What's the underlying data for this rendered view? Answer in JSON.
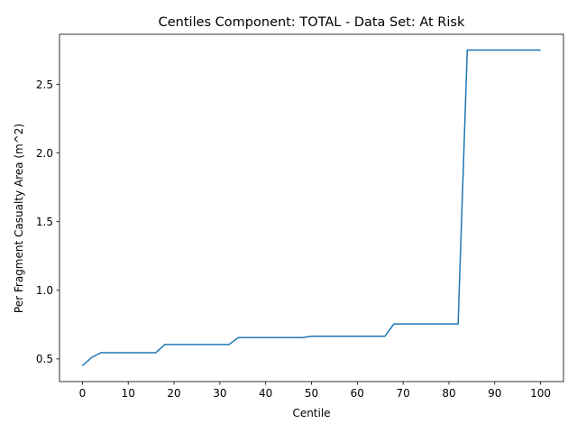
{
  "chart_data": {
    "type": "line",
    "title": "Centiles Component: TOTAL - Data Set: At Risk",
    "xlabel": "Centile",
    "ylabel": "Per Fragment Casualty Area (m^2)",
    "xlim": [
      -5,
      105
    ],
    "ylim": [
      0.335,
      2.865
    ],
    "xticks": [
      0,
      10,
      20,
      30,
      40,
      50,
      60,
      70,
      80,
      90,
      100
    ],
    "xtick_labels": [
      "0",
      "10",
      "20",
      "30",
      "40",
      "50",
      "60",
      "70",
      "80",
      "90",
      "100"
    ],
    "yticks": [
      0.5,
      1.0,
      1.5,
      2.0,
      2.5
    ],
    "ytick_labels": [
      "0.5",
      "1.0",
      "1.5",
      "2.0",
      "2.5"
    ],
    "grid": false,
    "legend": "none",
    "color": "#1f77b4",
    "series": [
      {
        "x": [
          0,
          2,
          4,
          6,
          8,
          10,
          12,
          14,
          16,
          18,
          20,
          22,
          24,
          26,
          28,
          30,
          32,
          34,
          36,
          38,
          40,
          42,
          44,
          46,
          48,
          50,
          52,
          54,
          56,
          58,
          60,
          62,
          64,
          66,
          68,
          70,
          72,
          74,
          76,
          78,
          80,
          82,
          84,
          86,
          88,
          90,
          92,
          94,
          96,
          98,
          100
        ],
        "y": [
          0.45,
          0.51,
          0.545,
          0.545,
          0.545,
          0.545,
          0.545,
          0.545,
          0.545,
          0.605,
          0.605,
          0.605,
          0.605,
          0.605,
          0.605,
          0.605,
          0.605,
          0.655,
          0.655,
          0.655,
          0.655,
          0.655,
          0.655,
          0.655,
          0.655,
          0.665,
          0.665,
          0.665,
          0.665,
          0.665,
          0.665,
          0.665,
          0.665,
          0.665,
          0.755,
          0.755,
          0.755,
          0.755,
          0.755,
          0.755,
          0.755,
          0.755,
          2.75,
          2.75,
          2.75,
          2.75,
          2.75,
          2.75,
          2.75,
          2.75,
          2.75
        ]
      }
    ]
  }
}
